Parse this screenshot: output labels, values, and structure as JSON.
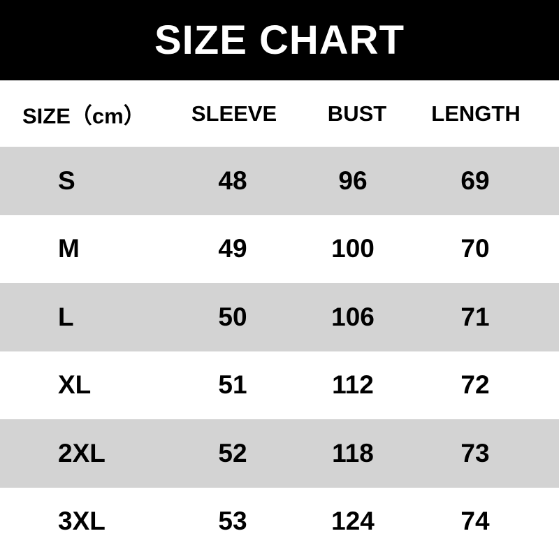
{
  "title": "SIZE CHART",
  "columns": [
    "SIZE（cm）",
    "SLEEVE",
    "BUST",
    "LENGTH"
  ],
  "rows": [
    [
      "S",
      "48",
      "96",
      "69"
    ],
    [
      "M",
      "49",
      "100",
      "70"
    ],
    [
      "L",
      "50",
      "106",
      "71"
    ],
    [
      "XL",
      "51",
      "112",
      "72"
    ],
    [
      "2XL",
      "52",
      "118",
      "73"
    ],
    [
      "3XL",
      "53",
      "124",
      "74"
    ]
  ],
  "colors": {
    "title_bg": "#000000",
    "stripe": "#d3d3d3"
  }
}
